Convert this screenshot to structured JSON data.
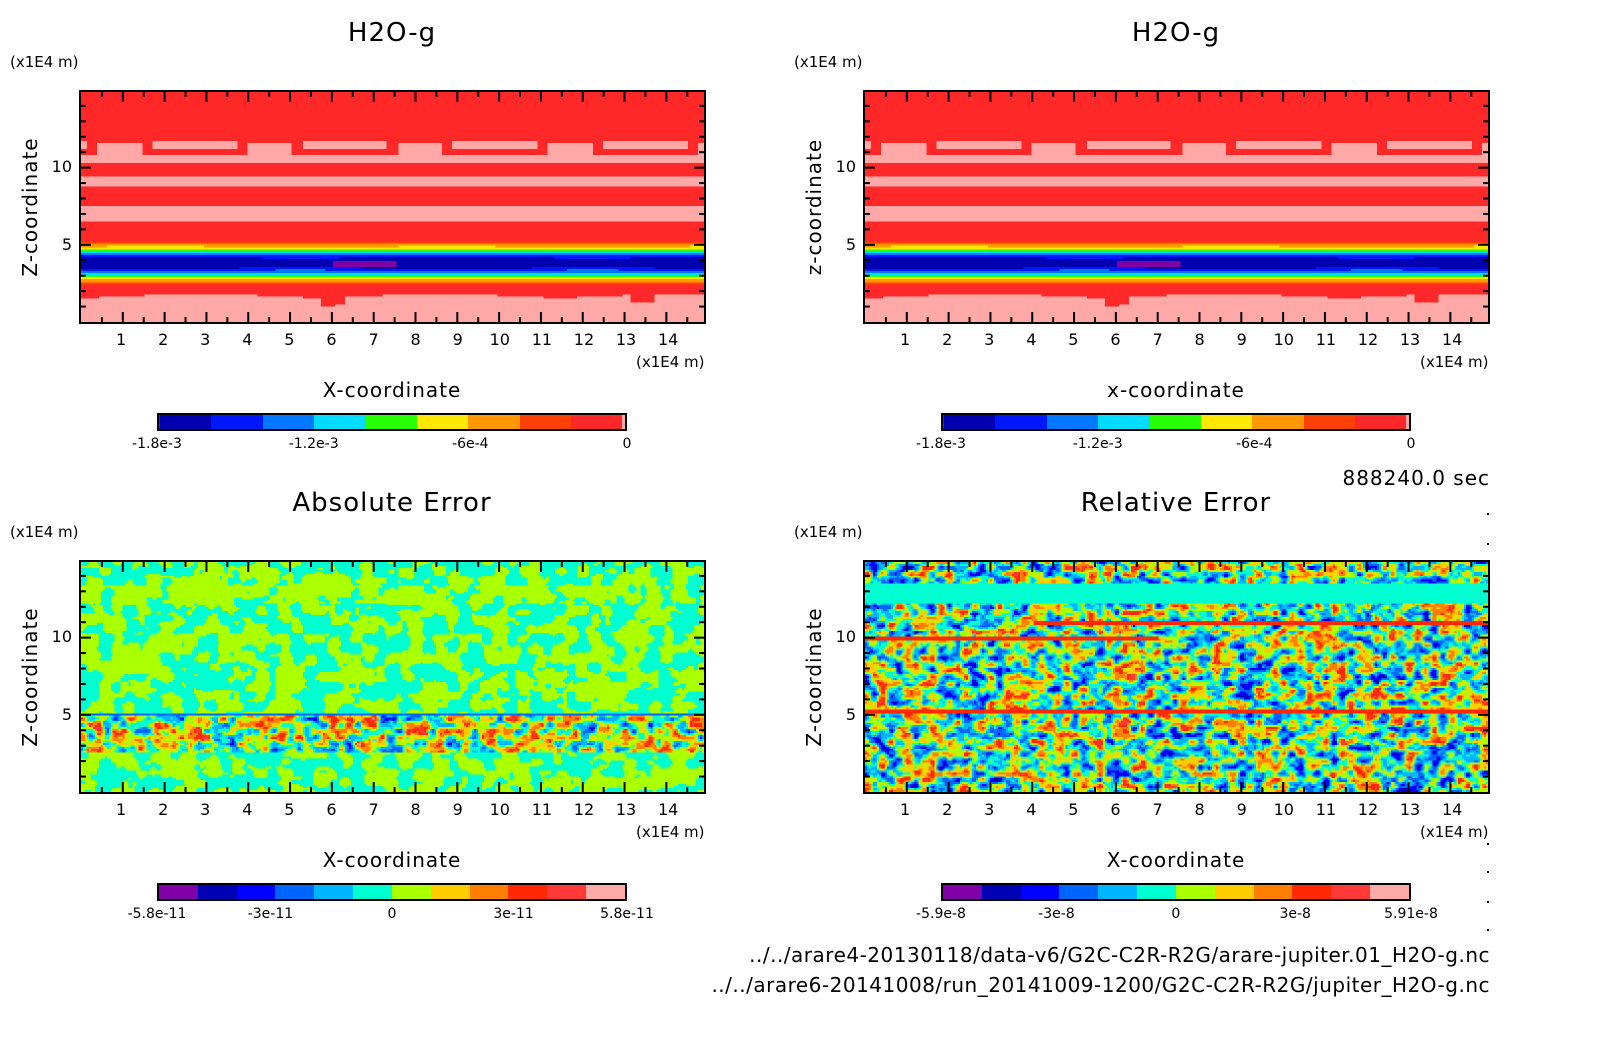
{
  "time_label": "888240.0 sec",
  "files": [
    "../../arare4-20130118/data-v6/G2C-C2R-R2G/arare-jupiter.01_H2O-g.nc",
    "../../arare6-20141008/run_20141009-1200/G2C-C2R-R2G/jupiter_H2O-g.nc"
  ],
  "chart_data": [
    {
      "type": "heatmap",
      "title": "H2O-g",
      "xlabel": "X-coordinate",
      "ylabel": "Z-coordinate",
      "x_unit": "(x1E4 m)",
      "y_unit": "(x1E4 m)",
      "xlim": [
        0,
        14.9
      ],
      "ylim": [
        0,
        14.9
      ],
      "x_ticks": [
        "1",
        "2",
        "3",
        "4",
        "5",
        "6",
        "7",
        "8",
        "9",
        "10",
        "11",
        "12",
        "13",
        "14"
      ],
      "y_ticks": [
        "5",
        "10"
      ],
      "colorbar": {
        "range": [
          -0.0018,
          0
        ],
        "tick_labels": [
          "-1.8e-3",
          "-1.2e-3",
          "-6e-4",
          "0"
        ],
        "tick_values": [
          -0.0018,
          -0.0012,
          -0.0006,
          0
        ],
        "colors": [
          "#8000a0",
          "#0000b0",
          "#0018ff",
          "#0078ff",
          "#00dcff",
          "#28ff00",
          "#ffe800",
          "#ff9800",
          "#ff4000",
          "#ff2828",
          "#ffa8a8"
        ],
        "segment_fracs": [
          0.02,
          1,
          1,
          1,
          1,
          1,
          1,
          1,
          1,
          1,
          0.05
        ]
      },
      "description": "Stratified field: near-zero (red/pink) above ~6 and below ~2.5, strong negative minimum (~-1.8e-3) band between z~3 and z~5"
    },
    {
      "type": "heatmap",
      "title": "H2O-g",
      "xlabel": "x-coordinate",
      "ylabel": "z-coordinate",
      "x_unit": "(x1E4 m)",
      "y_unit": "(x1E4 m)",
      "xlim": [
        0,
        14.9
      ],
      "ylim": [
        0,
        14.9
      ],
      "x_ticks": [
        "1",
        "2",
        "3",
        "4",
        "5",
        "6",
        "7",
        "8",
        "9",
        "10",
        "11",
        "12",
        "13",
        "14"
      ],
      "y_ticks": [
        "5",
        "10"
      ],
      "colorbar": {
        "range": [
          -0.0018,
          0
        ],
        "tick_labels": [
          "-1.8e-3",
          "-1.2e-3",
          "-6e-4",
          "0"
        ],
        "tick_values": [
          -0.0018,
          -0.0012,
          -0.0006,
          0
        ],
        "colors": [
          "#8000a0",
          "#0000b0",
          "#0018ff",
          "#0078ff",
          "#00dcff",
          "#28ff00",
          "#ffe800",
          "#ff9800",
          "#ff4000",
          "#ff2828",
          "#ffa8a8"
        ],
        "segment_fracs": [
          0.02,
          1,
          1,
          1,
          1,
          1,
          1,
          1,
          1,
          1,
          0.05
        ]
      },
      "description": "Same field as left panel (second dataset)"
    },
    {
      "type": "heatmap",
      "title": "Absolute Error",
      "xlabel": "X-coordinate",
      "ylabel": "Z-coordinate",
      "x_unit": "(x1E4 m)",
      "y_unit": "(x1E4 m)",
      "xlim": [
        0,
        14.9
      ],
      "ylim": [
        0,
        14.9
      ],
      "x_ticks": [
        "1",
        "2",
        "3",
        "4",
        "5",
        "6",
        "7",
        "8",
        "9",
        "10",
        "11",
        "12",
        "13",
        "14"
      ],
      "y_ticks": [
        "5",
        "10"
      ],
      "colorbar": {
        "range": [
          -5.8e-11,
          5.8e-11
        ],
        "tick_labels": [
          "-5.8e-11",
          "-3e-11",
          "0",
          "3e-11",
          "5.8e-11"
        ],
        "tick_values": [
          -5.8e-11,
          -3e-11,
          0,
          3e-11,
          5.8e-11
        ],
        "colors": [
          "#8000a8",
          "#0000b4",
          "#0000ff",
          "#0064ff",
          "#00b4ff",
          "#00ffd0",
          "#aaff00",
          "#ffcc00",
          "#ff8000",
          "#ff2800",
          "#ff3838",
          "#ffaaaa"
        ],
        "segment_fracs": [
          1,
          1,
          1,
          1,
          1,
          1,
          1,
          1,
          1,
          1,
          1,
          1
        ]
      },
      "description": "Near-zero noise everywhere; larger +/- errors in band z~2.8 to ~5.2"
    },
    {
      "type": "heatmap",
      "title": "Relative Error",
      "xlabel": "X-coordinate",
      "ylabel": "Z-coordinate",
      "x_unit": "(x1E4 m)",
      "y_unit": "(x1E4 m)",
      "xlim": [
        0,
        14.9
      ],
      "ylim": [
        0,
        14.9
      ],
      "x_ticks": [
        "1",
        "2",
        "3",
        "4",
        "5",
        "6",
        "7",
        "8",
        "9",
        "10",
        "11",
        "12",
        "13",
        "14"
      ],
      "y_ticks": [
        "5",
        "10"
      ],
      "colorbar": {
        "range": [
          -5.9e-08,
          5.91e-08
        ],
        "tick_labels": [
          "-5.9e-8",
          "-3e-8",
          "0",
          "3e-8",
          "5.91e-8"
        ],
        "tick_values": [
          -5.9e-08,
          -3e-08,
          0,
          3e-08,
          5.91e-08
        ],
        "colors": [
          "#8000a8",
          "#0000b4",
          "#0000ff",
          "#0064ff",
          "#00b4ff",
          "#00ffd0",
          "#aaff00",
          "#ffcc00",
          "#ff8000",
          "#ff2800",
          "#ff3838",
          "#ffaaaa"
        ],
        "segment_fracs": [
          1,
          1,
          1,
          1,
          1,
          1,
          1,
          1,
          1,
          1,
          1,
          1
        ]
      },
      "description": "Noisy +/- pattern everywhere, zero band near z~12-13"
    }
  ]
}
